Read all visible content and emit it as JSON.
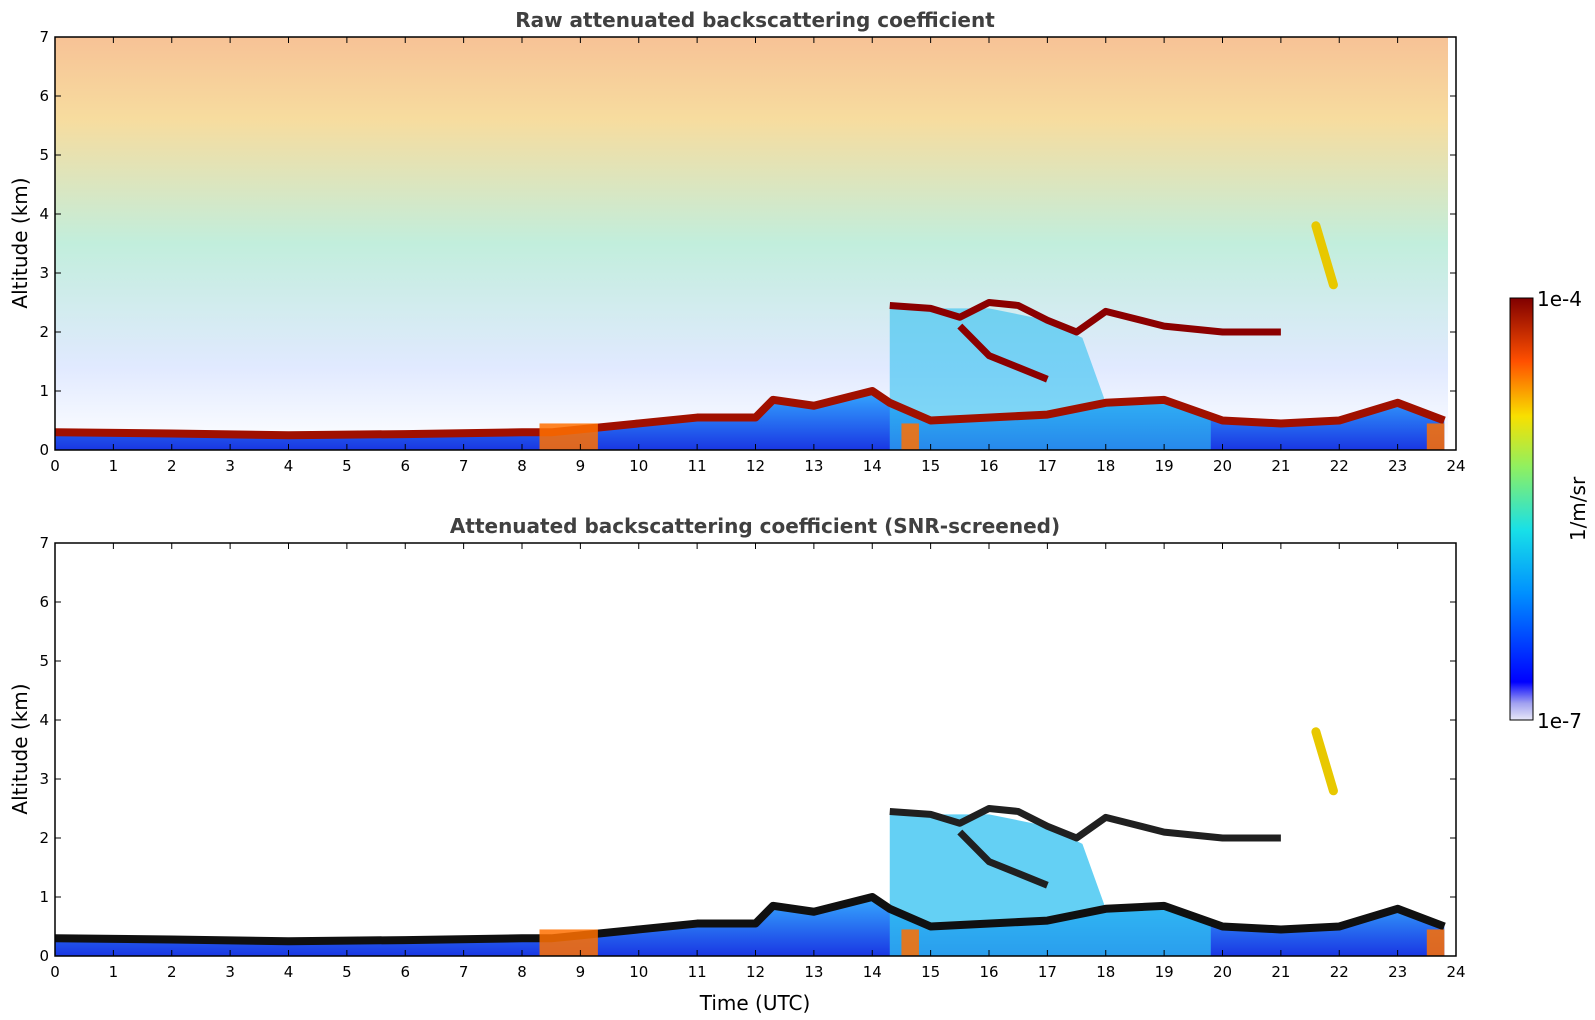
{
  "chart_data": [
    {
      "type": "heatmap",
      "title": "Raw attenuated backscattering coefficient",
      "xlabel": "",
      "ylabel": "Altitude (km)",
      "xlim": [
        0,
        24
      ],
      "ylim": [
        0,
        7
      ],
      "xticks": [
        "0",
        "1",
        "2",
        "3",
        "4",
        "5",
        "6",
        "7",
        "8",
        "9",
        "10",
        "11",
        "12",
        "13",
        "14",
        "15",
        "16",
        "17",
        "18",
        "19",
        "20",
        "21",
        "22",
        "23",
        "24"
      ],
      "yticks": [
        "0",
        "1",
        "2",
        "3",
        "4",
        "5",
        "6",
        "7"
      ],
      "screened": false
    },
    {
      "type": "heatmap",
      "title": "Attenuated backscattering coefficient (SNR-screened)",
      "xlabel": "Time (UTC)",
      "ylabel": "Altitude (km)",
      "xlim": [
        0,
        24
      ],
      "ylim": [
        0,
        7
      ],
      "xticks": [
        "0",
        "1",
        "2",
        "3",
        "4",
        "5",
        "6",
        "7",
        "8",
        "9",
        "10",
        "11",
        "12",
        "13",
        "14",
        "15",
        "16",
        "17",
        "18",
        "19",
        "20",
        "21",
        "22",
        "23",
        "24"
      ],
      "yticks": [
        "0",
        "1",
        "2",
        "3",
        "4",
        "5",
        "6",
        "7"
      ],
      "screened": true
    }
  ],
  "colorbar": {
    "max_label": "1e-4",
    "min_label": "1e-7",
    "unit_label": "1/m/sr",
    "scale": "log",
    "colormap": "jet"
  },
  "layers": {
    "boundary_layer_top_km": [
      [
        0,
        0.3
      ],
      [
        2,
        0.28
      ],
      [
        4,
        0.25
      ],
      [
        6,
        0.27
      ],
      [
        8,
        0.3
      ],
      [
        8.5,
        0.3
      ],
      [
        9,
        0.35
      ],
      [
        10,
        0.45
      ],
      [
        11,
        0.55
      ],
      [
        12,
        0.55
      ],
      [
        12.3,
        0.85
      ],
      [
        13,
        0.75
      ],
      [
        14,
        1.0
      ],
      [
        14.3,
        0.8
      ],
      [
        15,
        0.5
      ],
      [
        17,
        0.6
      ],
      [
        18,
        0.8
      ],
      [
        19,
        0.85
      ],
      [
        20,
        0.5
      ],
      [
        21,
        0.45
      ],
      [
        22,
        0.5
      ],
      [
        23,
        0.8
      ],
      [
        23.8,
        0.5
      ]
    ],
    "cloud_layer_km": [
      [
        14.3,
        2.45
      ],
      [
        15,
        2.4
      ],
      [
        15.5,
        2.25
      ],
      [
        16,
        2.5
      ],
      [
        16.5,
        2.45
      ],
      [
        17,
        2.2
      ],
      [
        17.5,
        2.0
      ],
      [
        18,
        2.35
      ],
      [
        19,
        2.1
      ],
      [
        20,
        2.0
      ],
      [
        21,
        2.0
      ]
    ],
    "secondary_cloud_km": [
      [
        15.5,
        2.1
      ],
      [
        16,
        1.6
      ],
      [
        16.5,
        1.4
      ],
      [
        17,
        1.2
      ]
    ],
    "plume_km": [
      [
        21.6,
        3.8
      ],
      [
        21.9,
        2.8
      ]
    ]
  }
}
